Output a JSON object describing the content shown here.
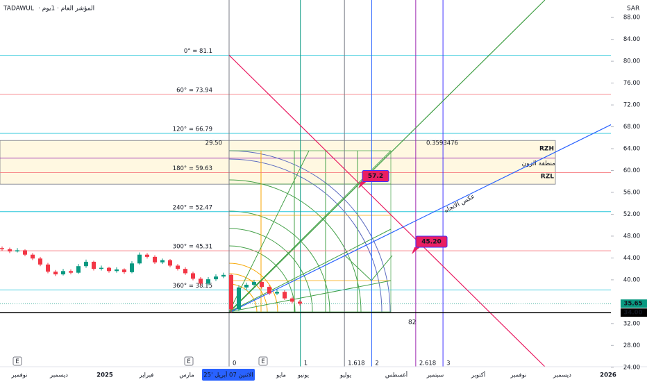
{
  "header": {
    "symbol": "TADAWUL",
    "title": "· المؤشر العام · 1يوم",
    "currency": "SAR"
  },
  "chart_data": {
    "type": "candlestick",
    "ylim": [
      24.1,
      91.2
    ],
    "yticks": [
      {
        "value": 88,
        "label": "88.00"
      },
      {
        "value": 84,
        "label": "84.00"
      },
      {
        "value": 80,
        "label": "80.00"
      },
      {
        "value": 76,
        "label": "76.00"
      },
      {
        "value": 72,
        "label": "72.00"
      },
      {
        "value": 68,
        "label": "68.00"
      },
      {
        "value": 64,
        "label": "64.00"
      },
      {
        "value": 60,
        "label": "60.00"
      },
      {
        "value": 56,
        "label": "56.00"
      },
      {
        "value": 52,
        "label": "52.00"
      },
      {
        "value": 48,
        "label": "48.00"
      },
      {
        "value": 44,
        "label": "44.00"
      },
      {
        "value": 40,
        "label": "40.00"
      },
      {
        "value": 32,
        "label": "32.00"
      },
      {
        "value": 28,
        "label": "28.00"
      },
      {
        "value": 24,
        "label": "24.00"
      }
    ],
    "candle_colors": {
      "up": "#089981",
      "down": "#f23645"
    },
    "ohlc": [
      [
        45.8,
        46.1,
        45.3,
        45.6
      ],
      [
        45.6,
        45.9,
        44.9,
        45.2
      ],
      [
        45.2,
        45.8,
        45.0,
        45.4
      ],
      [
        45.4,
        45.6,
        44.3,
        44.6
      ],
      [
        44.6,
        44.9,
        43.6,
        43.9
      ],
      [
        43.9,
        44.2,
        42.5,
        42.8
      ],
      [
        42.8,
        43.1,
        41.2,
        41.5
      ],
      [
        41.5,
        41.8,
        40.7,
        41.0
      ],
      [
        41.0,
        42.0,
        40.8,
        41.6
      ],
      [
        41.6,
        41.9,
        41.0,
        41.3
      ],
      [
        41.3,
        42.9,
        41.1,
        42.5
      ],
      [
        42.5,
        43.7,
        42.2,
        43.3
      ],
      [
        43.3,
        43.5,
        41.7,
        42.0
      ],
      [
        42.0,
        42.6,
        41.7,
        42.2
      ],
      [
        42.2,
        42.4,
        41.3,
        41.6
      ],
      [
        41.6,
        42.3,
        41.3,
        41.9
      ],
      [
        41.9,
        42.1,
        41.1,
        41.4
      ],
      [
        41.4,
        43.4,
        41.2,
        43.0
      ],
      [
        43.0,
        45.0,
        42.8,
        44.6
      ],
      [
        44.6,
        44.9,
        43.9,
        44.2
      ],
      [
        44.2,
        44.5,
        42.9,
        43.2
      ],
      [
        43.2,
        43.9,
        42.9,
        43.6
      ],
      [
        43.6,
        43.8,
        42.3,
        42.6
      ],
      [
        42.6,
        42.9,
        41.7,
        42.0
      ],
      [
        42.0,
        42.3,
        40.9,
        41.2
      ],
      [
        41.2,
        41.5,
        39.9,
        40.2
      ],
      [
        40.2,
        40.5,
        38.9,
        39.3
      ],
      [
        39.3,
        40.5,
        39.0,
        40.1
      ],
      [
        40.1,
        41.0,
        39.8,
        40.6
      ],
      [
        40.6,
        41.3,
        40.3,
        40.9
      ],
      [
        40.9,
        41.1,
        34.0,
        34.6
      ],
      [
        34.6,
        39.0,
        34.3,
        38.6
      ],
      [
        38.6,
        39.5,
        38.2,
        39.1
      ],
      [
        39.1,
        40.0,
        38.8,
        39.6
      ],
      [
        39.6,
        39.9,
        38.4,
        38.7
      ],
      [
        38.7,
        39.0,
        37.2,
        37.5
      ],
      [
        37.5,
        38.2,
        37.2,
        37.8
      ],
      [
        37.8,
        38.1,
        36.3,
        36.6
      ],
      [
        36.6,
        36.9,
        35.7,
        36.0
      ],
      [
        36.0,
        36.3,
        35.3,
        35.65
      ]
    ],
    "gann_levels": [
      {
        "value": 81.1,
        "label": "0° = 81.1",
        "color": "#26c6da"
      },
      {
        "value": 73.94,
        "label": "60° = 73.94",
        "color": "#f77c80"
      },
      {
        "value": 66.79,
        "label": "120° = 66.79",
        "color": "#26c6da"
      },
      {
        "value": 59.63,
        "label": "180° = 59.63",
        "color": "#f77c80"
      },
      {
        "value": 52.47,
        "label": "240° = 52.47",
        "color": "#26c6da"
      },
      {
        "value": 45.31,
        "label": "300° = 45.31",
        "color": "#f77c80"
      },
      {
        "value": 38.15,
        "label": "360° = 38.15",
        "color": "#26c6da"
      }
    ],
    "zone": {
      "ylim": [
        57.5,
        65.5
      ],
      "high_label": "RZH",
      "name": "منطقة الزون",
      "low_label": "RZL",
      "left_note": "29.50",
      "right_note": "0.3593476"
    },
    "time_fibs": {
      "values": [
        0,
        1,
        1.618,
        2,
        2.618,
        3
      ],
      "colors": [
        "#787b86",
        "#089981",
        "#787b86",
        "#2962ff",
        "#9c27b0",
        "#3f2fff"
      ]
    },
    "trendlines": [
      {
        "color": "#e91e63",
        "x": [
          0,
          4.43
        ],
        "y": [
          81.1,
          24.1
        ]
      },
      {
        "color": "#2962ff",
        "x": [
          0,
          5.5
        ],
        "y": [
          34,
          69.3
        ]
      },
      {
        "color": "#43a047",
        "x": [
          0,
          4.43
        ],
        "y": [
          34,
          91.2
        ]
      }
    ],
    "annotations": [
      {
        "value": 57.2,
        "label": "57.2",
        "x": 1.85
      },
      {
        "value": 45.2,
        "label": "45.20",
        "x": 2.6
      }
    ],
    "trend_label": "عكس الاتجاه",
    "price_markers": [
      {
        "value": 35.65,
        "label": "35.65",
        "color": "#089981"
      },
      {
        "value": 34,
        "label": "34.00",
        "color": "#000000"
      }
    ],
    "bottom_note": "82",
    "x_labels": [
      "نوفمبر",
      "ديسمبر",
      "2025",
      "فبراير",
      "مارس",
      "الاثنين 07 أبريل '25",
      "مايو",
      "يونيو",
      "يوليو",
      "أغسطس",
      "سبتمبر",
      "أكتوبر",
      "نوفمبر",
      "ديسمبر",
      "2026"
    ],
    "event_markers": [
      "E",
      "E",
      "E"
    ]
  }
}
